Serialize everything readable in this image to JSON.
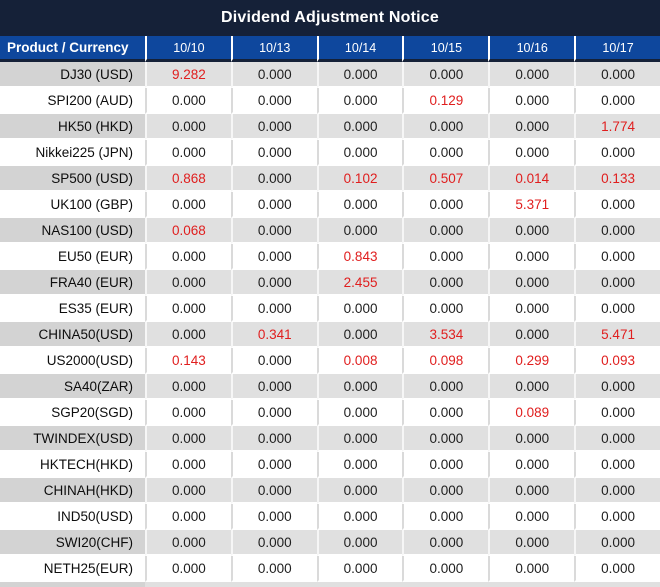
{
  "title": "Dividend Adjustment Notice",
  "colors": {
    "title_bar_navy": "#152138",
    "header_blue": "#0e479d",
    "row_gray_label": "#d3d3d3",
    "row_gray_value": "#e0e0e0",
    "row_white": "#ffffff",
    "value_red": "#e01e1e",
    "text_dark": "#1e1e1e"
  },
  "table": {
    "header_label": "Product / Currency",
    "dates": [
      "10/10",
      "10/13",
      "10/14",
      "10/15",
      "10/16",
      "10/17"
    ],
    "rows": [
      {
        "product": "DJ30 (USD)",
        "values": [
          "9.282",
          "0.000",
          "0.000",
          "0.000",
          "0.000",
          "0.000"
        ],
        "red": [
          0
        ]
      },
      {
        "product": "SPI200 (AUD)",
        "values": [
          "0.000",
          "0.000",
          "0.000",
          "0.129",
          "0.000",
          "0.000"
        ],
        "red": [
          3
        ]
      },
      {
        "product": "HK50 (HKD)",
        "values": [
          "0.000",
          "0.000",
          "0.000",
          "0.000",
          "0.000",
          "1.774"
        ],
        "red": [
          5
        ]
      },
      {
        "product": "Nikkei225 (JPN)",
        "values": [
          "0.000",
          "0.000",
          "0.000",
          "0.000",
          "0.000",
          "0.000"
        ],
        "red": []
      },
      {
        "product": "SP500 (USD)",
        "values": [
          "0.868",
          "0.000",
          "0.102",
          "0.507",
          "0.014",
          "0.133"
        ],
        "red": [
          0,
          2,
          3,
          4,
          5
        ]
      },
      {
        "product": "UK100 (GBP)",
        "values": [
          "0.000",
          "0.000",
          "0.000",
          "0.000",
          "5.371",
          "0.000"
        ],
        "red": [
          4
        ]
      },
      {
        "product": "NAS100 (USD)",
        "values": [
          "0.068",
          "0.000",
          "0.000",
          "0.000",
          "0.000",
          "0.000"
        ],
        "red": [
          0
        ]
      },
      {
        "product": "EU50 (EUR)",
        "values": [
          "0.000",
          "0.000",
          "0.843",
          "0.000",
          "0.000",
          "0.000"
        ],
        "red": [
          2
        ]
      },
      {
        "product": "FRA40 (EUR)",
        "values": [
          "0.000",
          "0.000",
          "2.455",
          "0.000",
          "0.000",
          "0.000"
        ],
        "red": [
          2
        ]
      },
      {
        "product": "ES35 (EUR)",
        "values": [
          "0.000",
          "0.000",
          "0.000",
          "0.000",
          "0.000",
          "0.000"
        ],
        "red": []
      },
      {
        "product": "CHINA50(USD)",
        "values": [
          "0.000",
          "0.341",
          "0.000",
          "3.534",
          "0.000",
          "5.471"
        ],
        "red": [
          1,
          3,
          5
        ]
      },
      {
        "product": "US2000(USD)",
        "values": [
          "0.143",
          "0.000",
          "0.008",
          "0.098",
          "0.299",
          "0.093"
        ],
        "red": [
          0,
          2,
          3,
          4,
          5
        ]
      },
      {
        "product": "SA40(ZAR)",
        "values": [
          "0.000",
          "0.000",
          "0.000",
          "0.000",
          "0.000",
          "0.000"
        ],
        "red": []
      },
      {
        "product": "SGP20(SGD)",
        "values": [
          "0.000",
          "0.000",
          "0.000",
          "0.000",
          "0.089",
          "0.000"
        ],
        "red": [
          4
        ]
      },
      {
        "product": "TWINDEX(USD)",
        "values": [
          "0.000",
          "0.000",
          "0.000",
          "0.000",
          "0.000",
          "0.000"
        ],
        "red": []
      },
      {
        "product": "HKTECH(HKD)",
        "values": [
          "0.000",
          "0.000",
          "0.000",
          "0.000",
          "0.000",
          "0.000"
        ],
        "red": []
      },
      {
        "product": "CHINAH(HKD)",
        "values": [
          "0.000",
          "0.000",
          "0.000",
          "0.000",
          "0.000",
          "0.000"
        ],
        "red": []
      },
      {
        "product": "IND50(USD)",
        "values": [
          "0.000",
          "0.000",
          "0.000",
          "0.000",
          "0.000",
          "0.000"
        ],
        "red": []
      },
      {
        "product": "SWI20(CHF)",
        "values": [
          "0.000",
          "0.000",
          "0.000",
          "0.000",
          "0.000",
          "0.000"
        ],
        "red": []
      },
      {
        "product": "NETH25(EUR)",
        "values": [
          "0.000",
          "0.000",
          "0.000",
          "0.000",
          "0.000",
          "0.000"
        ],
        "red": []
      }
    ]
  }
}
